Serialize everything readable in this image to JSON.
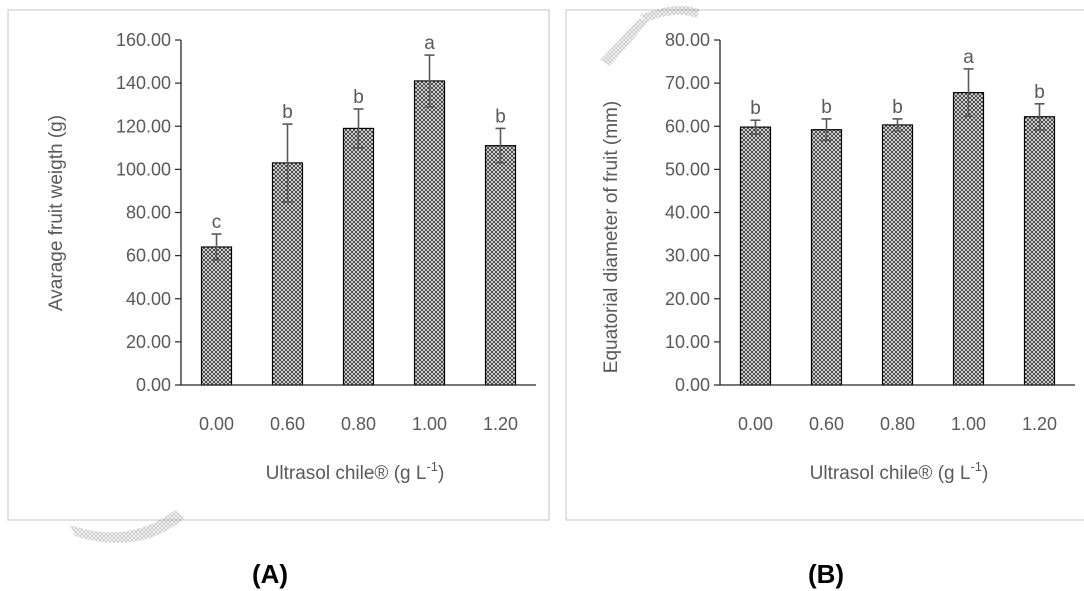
{
  "chart_data": [
    {
      "type": "bar",
      "panel_label": "(A)",
      "categories": [
        "0.00",
        "0.60",
        "0.80",
        "1.00",
        "1.20"
      ],
      "values": [
        64,
        103,
        119,
        141,
        111
      ],
      "errors": [
        6,
        18,
        9,
        12,
        8
      ],
      "significance_labels": [
        "c",
        "b",
        "b",
        "a",
        "b"
      ],
      "ylabel": "Avarage fruit weigth (g)",
      "xlabel": "Ultrasol chile® (g L",
      "xlabel_superscript": "-1",
      "xlabel_suffix": ")",
      "ylim": [
        0,
        160
      ],
      "yticks": [
        "0.00",
        "20.00",
        "40.00",
        "60.00",
        "80.00",
        "100.00",
        "120.00",
        "140.00",
        "160.00"
      ],
      "grid": false,
      "legend": "none",
      "bar_pattern": "crosshatch"
    },
    {
      "type": "bar",
      "panel_label": "(B)",
      "categories": [
        "0.00",
        "0.60",
        "0.80",
        "1.00",
        "1.20"
      ],
      "values": [
        59.8,
        59.2,
        60.3,
        67.8,
        62.2
      ],
      "errors": [
        1.6,
        2.5,
        1.4,
        5.5,
        3
      ],
      "significance_labels": [
        "b",
        "b",
        "b",
        "a",
        "b"
      ],
      "ylabel": "Equatorial diameter of fruit (mm)",
      "xlabel": "Ultrasol chile® (g L",
      "xlabel_superscript": "-1",
      "xlabel_suffix": ")",
      "ylim": [
        0,
        80
      ],
      "yticks": [
        "0.00",
        "10.00",
        "20.00",
        "30.00",
        "40.00",
        "50.00",
        "60.00",
        "70.00",
        "80.00"
      ],
      "grid": false,
      "legend": "none",
      "bar_pattern": "crosshatch"
    }
  ],
  "colors": {
    "text": "#595959",
    "axis": "#262626",
    "error_bar": "#595959",
    "bar_hatch": "#404040",
    "bar_outline": "#000000",
    "panel_border": "#d9d9d9"
  }
}
